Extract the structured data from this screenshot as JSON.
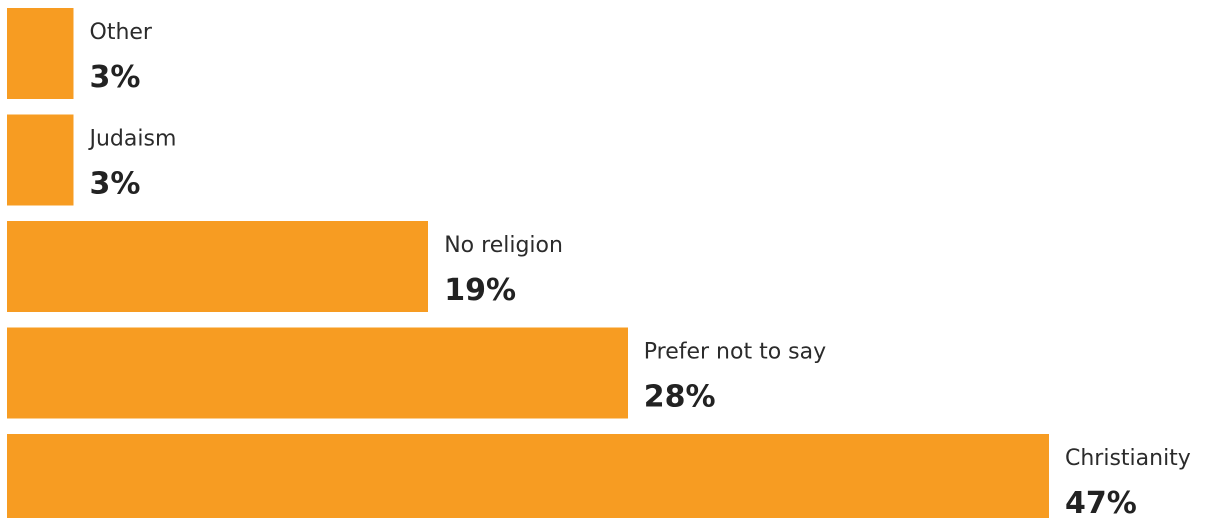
{
  "chart_data": {
    "type": "bar",
    "orientation": "horizontal",
    "categories": [
      "Other",
      "Judaism",
      "No religion",
      "Prefer not to say",
      "Christianity"
    ],
    "values": [
      3,
      3,
      19,
      28,
      47
    ],
    "value_labels": [
      "3%",
      "3%",
      "19%",
      "28%",
      "47%"
    ],
    "unit": "%",
    "grid": false,
    "legend": "none",
    "bar_color": "#F79C22"
  }
}
